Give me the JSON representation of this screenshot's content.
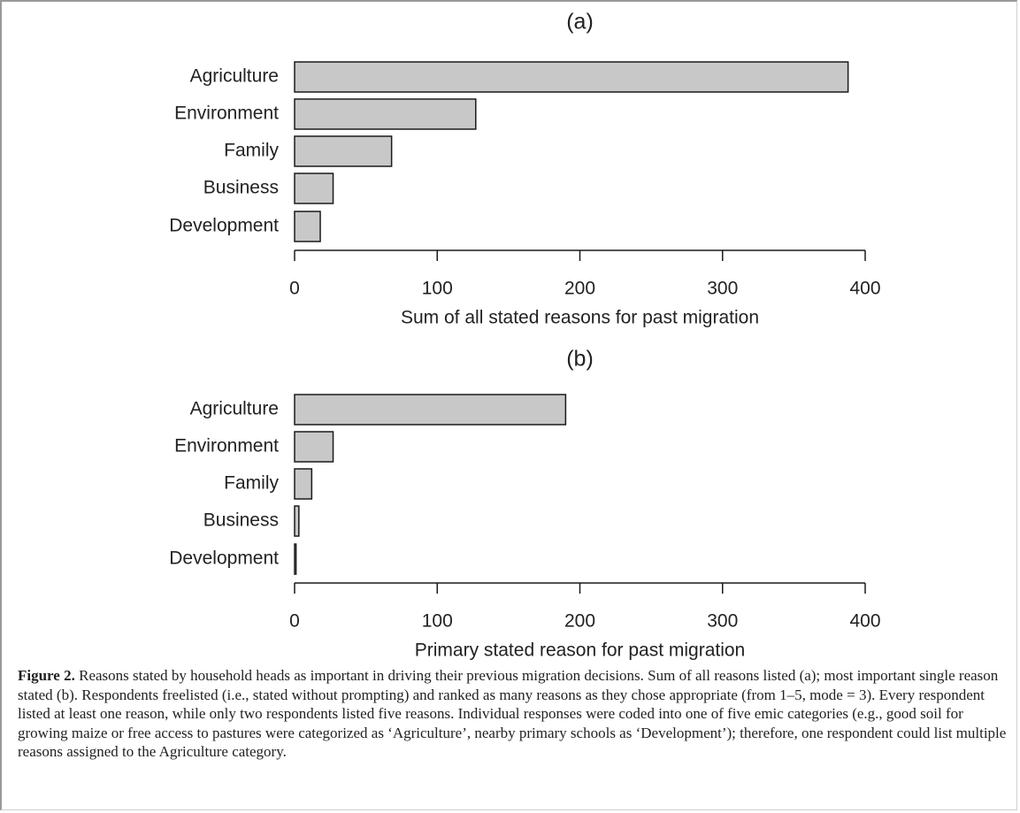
{
  "chart_data": [
    {
      "type": "bar",
      "orientation": "horizontal",
      "title": "(a)",
      "categories": [
        "Agriculture",
        "Environment",
        "Family",
        "Business",
        "Development"
      ],
      "values": [
        388,
        127,
        68,
        27,
        18
      ],
      "xlabel": "Sum of all stated reasons for past migration",
      "xlim": [
        0,
        400
      ],
      "xticks": [
        0,
        100,
        200,
        300,
        400
      ],
      "grid": false
    },
    {
      "type": "bar",
      "orientation": "horizontal",
      "title": "(b)",
      "categories": [
        "Agriculture",
        "Environment",
        "Family",
        "Business",
        "Development"
      ],
      "values": [
        190,
        27,
        12,
        3,
        1
      ],
      "xlabel": "Primary stated reason for past migration",
      "xlim": [
        0,
        400
      ],
      "xticks": [
        0,
        100,
        200,
        300,
        400
      ],
      "grid": false
    }
  ],
  "caption": {
    "label": "Figure 2.",
    "text": " Reasons stated by household heads as important in driving their previous migration decisions. Sum of all reasons listed (a); most important single reason stated (b). Respondents freelisted (i.e., stated without prompting) and ranked as many reasons as they chose appropriate (from 1–5, mode = 3). Every respondent listed at least one reason, while only two respondents listed five reasons. Individual responses were coded into one of five emic categories (e.g., good soil for growing maize or free access to pastures were categorized as ‘Agriculture’, nearby primary schools as ‘Development’); therefore, one respondent could list multiple reasons assigned to the Agriculture category."
  },
  "colors": {
    "bar_fill": "#c8c8c8",
    "bar_stroke": "#1a1a1a",
    "text": "#222222"
  }
}
